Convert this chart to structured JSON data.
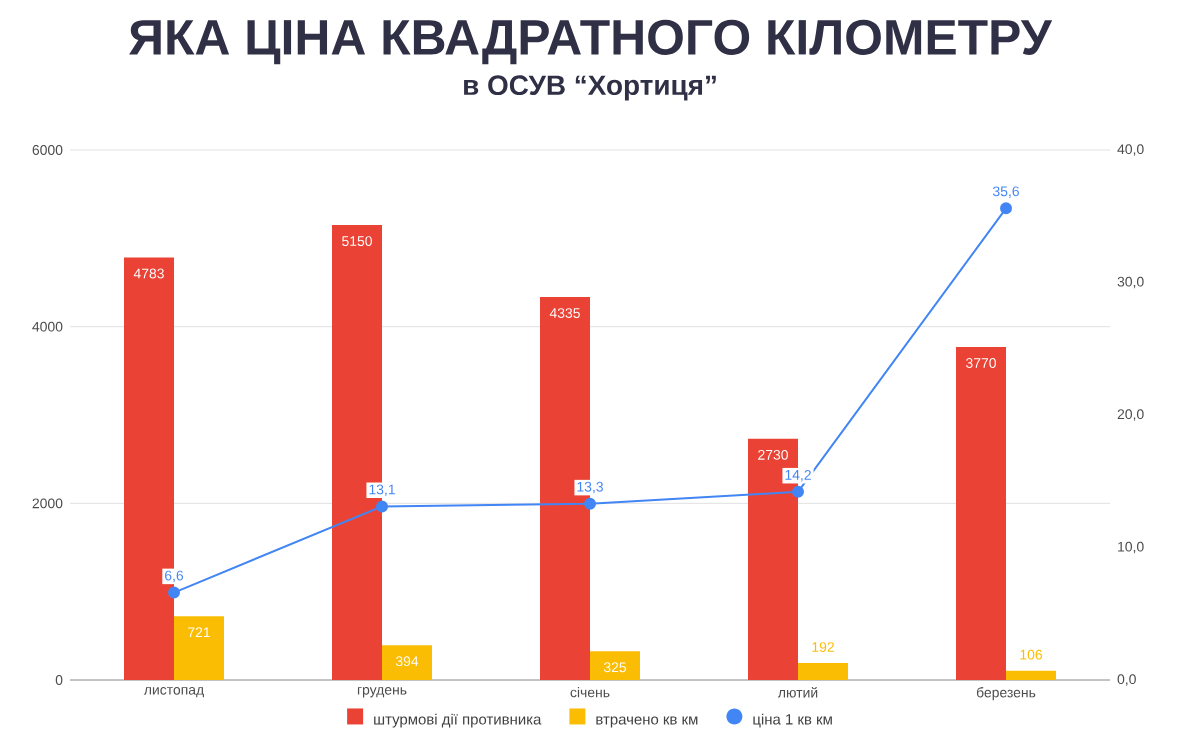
{
  "chart_data": {
    "type": "bar",
    "title": "ЯКА ЦІНА КВАДРАТНОГО КІЛОМЕТРУ",
    "subtitle": "в ОСУВ “Хортиця”",
    "categories": [
      "листопад",
      "грудень",
      "січень",
      "лютий",
      "березень"
    ],
    "series": [
      {
        "name": "штурмові дії противника",
        "color": "#ea4335",
        "values": [
          4783,
          5150,
          4335,
          2730,
          3770
        ],
        "value_labels": [
          "4783",
          "5150",
          "4335",
          "2730",
          "3770"
        ]
      },
      {
        "name": "втрачено кв км",
        "color": "#fbbc04",
        "values": [
          721,
          394,
          325,
          192,
          106
        ],
        "value_labels": [
          "721",
          "394",
          "325",
          "192",
          "106"
        ]
      },
      {
        "name": "ціна 1 кв км",
        "type": "line",
        "axis": "y2",
        "color": "#4285f4",
        "marker": "circle",
        "values": [
          6.6,
          13.1,
          13.3,
          14.2,
          35.6
        ],
        "value_labels": [
          "6,6",
          "13,1",
          "13,3",
          "14,2",
          "35,6"
        ]
      }
    ],
    "ylim": [
      0,
      6000
    ],
    "yticks": [
      0,
      2000,
      4000,
      6000
    ],
    "y2lim": [
      0,
      40
    ],
    "y2ticks": [
      {
        "value": 0,
        "label": "0,0"
      },
      {
        "value": 10,
        "label": "10,0"
      },
      {
        "value": 20,
        "label": "20,0"
      },
      {
        "value": 30,
        "label": "30,0"
      },
      {
        "value": 40,
        "label": "40,0"
      }
    ],
    "grid": "y",
    "legend": "bottom"
  }
}
